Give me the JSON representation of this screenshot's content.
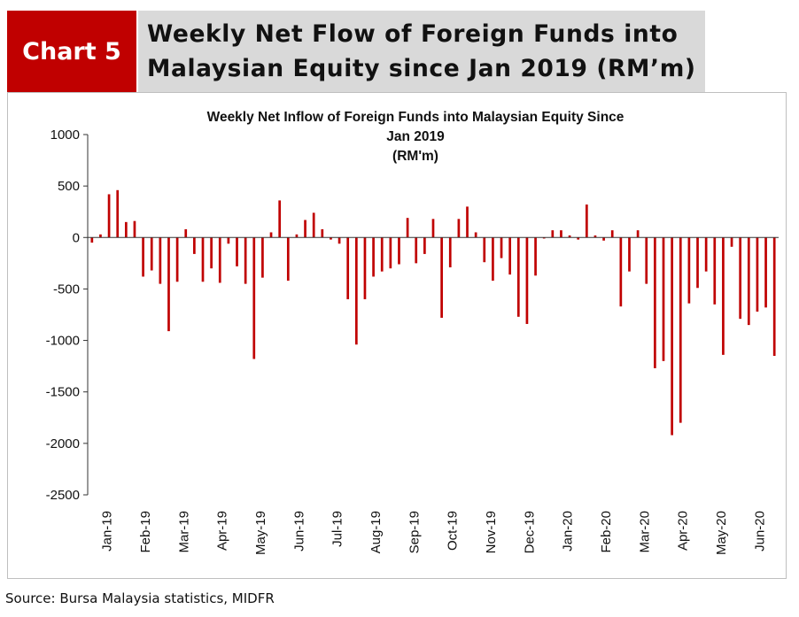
{
  "header": {
    "label": "Chart 5",
    "title_line1": "Weekly Net Flow of Foreign Funds into",
    "title_line2": "Malaysian Equity since Jan 2019 (RM’m)"
  },
  "source": "Source:  Bursa Malaysia statistics, MIDFR",
  "colors": {
    "bar": "#c00000",
    "header_bg": "#c00000",
    "title_bg": "#d9d9d9"
  },
  "chart_data": {
    "type": "bar",
    "title_lines": [
      "Weekly Net Inflow of Foreign Funds into Malaysian Equity Since",
      "Jan 2019",
      "(RM'm)"
    ],
    "xlabel": "",
    "ylabel": "",
    "ylim": [
      -2500,
      1000
    ],
    "yticks": [
      1000,
      500,
      0,
      -500,
      -1000,
      -1500,
      -2000,
      -2500
    ],
    "grid": false,
    "legend": "none",
    "x_tick_labels": [
      "Jan-19",
      "Feb-19",
      "Mar-19",
      "Apr-19",
      "May-19",
      "Jun-19",
      "Jul-19",
      "Aug-19",
      "Sep-19",
      "Oct-19",
      "Nov-19",
      "Dec-19",
      "Jan-20",
      "Feb-20",
      "Mar-20",
      "Apr-20",
      "May-20",
      "Jun-20"
    ],
    "series": [
      {
        "values": [
          -50,
          30,
          420,
          460,
          150,
          160,
          -380,
          -320,
          -450,
          -910,
          -430,
          80,
          -160,
          -430,
          -300,
          -440,
          -60,
          -280,
          -450,
          -1180,
          -390,
          50,
          360,
          -420,
          30,
          170,
          240,
          80,
          -20,
          -60,
          -600,
          -1040,
          -600,
          -380,
          -330,
          -300,
          -260,
          190,
          -250,
          -160,
          180,
          -780,
          -290,
          180,
          300,
          50,
          -240,
          -420,
          -200,
          -360,
          -770,
          -840,
          -370,
          -10,
          70,
          70,
          20,
          -20,
          320,
          20,
          -30,
          70,
          -670,
          -330,
          70,
          -450,
          -1270,
          -1200,
          -1920,
          -1800,
          -640,
          -490,
          -330,
          -650,
          -1140,
          -90,
          -790,
          -850,
          -720,
          -680,
          -1150
        ]
      }
    ]
  }
}
